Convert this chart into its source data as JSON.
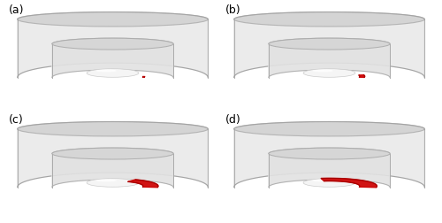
{
  "figure_width": 5.0,
  "figure_height": 2.53,
  "dpi": 100,
  "background_color": "#ffffff",
  "panel_labels": [
    "(a)",
    "(b)",
    "(c)",
    "(d)"
  ],
  "label_fontsize": 9,
  "label_color": "#000000",
  "outer_arc_color": "#c8c8c8",
  "outer_arc_edge": "#888888",
  "inner_disk_color": "#e8e8e8",
  "inner_disk_edge": "#aaaaaa",
  "top_face_color": "#d5d5d5",
  "top_face_edge": "#999999",
  "side_wall_color": "#cccccc",
  "side_wall_edge": "#999999",
  "cavitation_colors": [
    "#cc0000",
    "#cc0000",
    "#cc0000",
    "#cc0000"
  ],
  "cavitation_sizes": [
    0.04,
    0.12,
    0.35,
    0.55
  ],
  "outer_body_alpha": 0.55,
  "inner_body_alpha": 0.85
}
